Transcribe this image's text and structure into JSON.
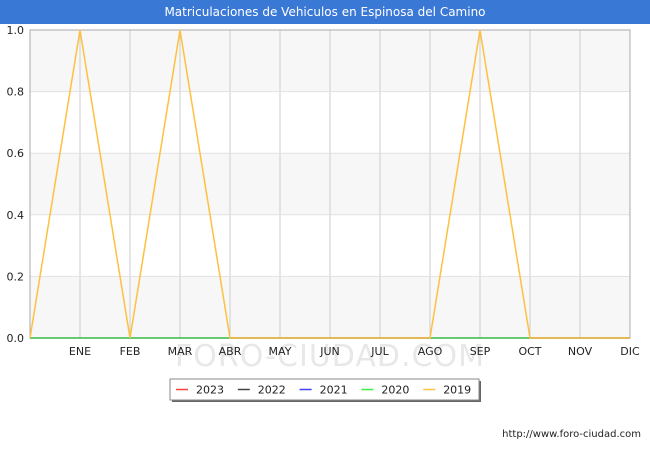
{
  "chart_data": {
    "type": "line",
    "title": "Matriculaciones de Vehiculos en Espinosa del Camino",
    "x_ticks": [
      "",
      "ENE",
      "FEB",
      "MAR",
      "ABR",
      "MAY",
      "JUN",
      "JUL",
      "AGO",
      "SEP",
      "OCT",
      "NOV",
      "DIC"
    ],
    "y_ticks": [
      "0.0",
      "0.2",
      "0.4",
      "0.6",
      "0.8",
      "1.0"
    ],
    "ylim": [
      0,
      1
    ],
    "grid": true,
    "legend_position": "bottom-center",
    "series": [
      {
        "name": "2023",
        "color": "#ff4040",
        "values": [
          0,
          0,
          0,
          0,
          0,
          0,
          0,
          0,
          0,
          0,
          0,
          0,
          0
        ]
      },
      {
        "name": "2022",
        "color": "#444444",
        "values": [
          0,
          0,
          0,
          0,
          0,
          0,
          0,
          0,
          0,
          0,
          0,
          0,
          0
        ]
      },
      {
        "name": "2021",
        "color": "#4040ff",
        "values": [
          0,
          0,
          0,
          0,
          0,
          0,
          0,
          0,
          0,
          0,
          0,
          0,
          0
        ]
      },
      {
        "name": "2020",
        "color": "#40ee40",
        "values": [
          0,
          0,
          0,
          0,
          0,
          0,
          0,
          0,
          0,
          0,
          0,
          0,
          0
        ]
      },
      {
        "name": "2019",
        "color": "#ffc040",
        "values": [
          0,
          1,
          0,
          1,
          0,
          0,
          0,
          0,
          0,
          1,
          0,
          0,
          0
        ]
      }
    ],
    "watermark": "FORO-CIUDAD.COM"
  },
  "footer": {
    "url": "http://www.foro-ciudad.com"
  }
}
